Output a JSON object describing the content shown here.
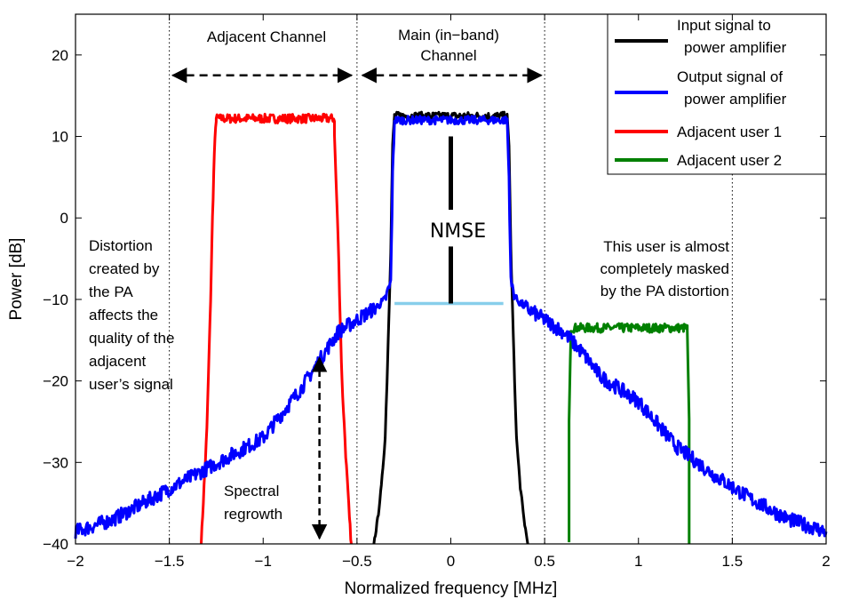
{
  "chart_data": {
    "type": "line",
    "xlabel": "Normalized frequency [MHz]",
    "ylabel": "Power [dB]",
    "xlim": [
      -2,
      2
    ],
    "ylim": [
      -40,
      25
    ],
    "x_ticks": [
      "−2",
      "−1.5",
      "−1",
      "−0.5",
      "0",
      "0.5",
      "1",
      "1.5",
      "2"
    ],
    "x_tick_values": [
      -2,
      -1.5,
      -1,
      -0.5,
      0,
      0.5,
      1,
      1.5,
      2
    ],
    "y_ticks": [
      "20",
      "10",
      "0",
      "−10",
      "−20",
      "−30",
      "−40"
    ],
    "y_tick_values": [
      20,
      10,
      0,
      -10,
      -20,
      -30,
      -40
    ],
    "grid": false,
    "vertical_dotted_lines_at": [
      -1.5,
      -0.5,
      0.5,
      1.5
    ],
    "legend_position": "top-right",
    "series": [
      {
        "name": "Input signal to power amplifier",
        "color": "#000000",
        "x": [
          -0.41,
          -0.39,
          -0.37,
          -0.35,
          -0.34,
          -0.33,
          -0.32,
          -0.315,
          -0.31,
          -0.3,
          -0.3,
          0.3,
          0.3,
          0.31,
          0.315,
          0.32,
          0.33,
          0.34,
          0.35,
          0.37,
          0.39,
          0.41
        ],
        "y": [
          -40,
          -37,
          -33,
          -27,
          -20,
          -12,
          -4,
          3,
          9,
          12.5,
          12.5,
          12.5,
          12.5,
          9,
          3,
          -4,
          -12,
          -20,
          -27,
          -33,
          -37,
          -40
        ]
      },
      {
        "name": "Output signal of power amplifier",
        "color": "#0000ff",
        "x": [
          -2,
          -1.8,
          -1.6,
          -1.4,
          -1.2,
          -1.0,
          -0.8,
          -0.7,
          -0.6,
          -0.5,
          -0.4,
          -0.35,
          -0.32,
          -0.31,
          -0.3,
          0.3,
          0.31,
          0.32,
          0.35,
          0.4,
          0.5,
          0.6,
          0.7,
          0.8,
          1.0,
          1.2,
          1.4,
          1.6,
          1.8,
          2.0
        ],
        "y": [
          -38.5,
          -37,
          -34.5,
          -32,
          -29.5,
          -27,
          -21,
          -17.5,
          -14,
          -12.5,
          -11,
          -10,
          -8,
          5,
          12,
          12,
          5,
          -8,
          -10,
          -11,
          -12.5,
          -14,
          -16.5,
          -19.5,
          -22.5,
          -28,
          -31.5,
          -34.5,
          -37,
          -38.5
        ]
      },
      {
        "name": "Adjacent user 1",
        "color": "#ff0000",
        "x": [
          -1.33,
          -1.3,
          -1.28,
          -1.27,
          -1.26,
          -1.25,
          -1.25,
          -0.62,
          -0.62,
          -0.6,
          -0.59,
          -0.58,
          -0.56,
          -0.54,
          -0.53
        ],
        "y": [
          -40,
          -26,
          -10,
          0,
          8,
          12.2,
          12.2,
          12.2,
          10,
          -3,
          -12,
          -20,
          -29,
          -37,
          -40
        ]
      },
      {
        "name": "Adjacent user 2",
        "color": "#008000",
        "x": [
          0.63,
          0.63,
          0.64,
          0.64,
          1.26,
          1.26,
          1.27,
          1.27
        ],
        "y": [
          -40,
          -25,
          -14,
          -13.5,
          -13.5,
          -14,
          -25,
          -40
        ]
      }
    ],
    "nmse_reference_line": {
      "x": [
        -0.3,
        0.28
      ],
      "y": [
        -10.5,
        -10.5
      ],
      "color": "#87ceeb"
    },
    "nmse_marker": {
      "x": 0,
      "y_top": 10,
      "y_bottom": -10.5
    },
    "annotations": {
      "adjacent_channel": "Adjacent Channel",
      "main_channel_line1": "Main (in−band)",
      "main_channel_line2": "Channel",
      "nmse": "NMSE",
      "distortion_lines": [
        "Distortion",
        "created by",
        "the PA",
        "affects the",
        "quality of the",
        "adjacent",
        "user’s signal"
      ],
      "masked_lines": [
        "This user is almost",
        "completely masked",
        "by the PA distortion"
      ],
      "spectral_regrowth_lines": [
        "Spectral",
        "regrowth"
      ]
    },
    "legend_labels": [
      [
        "Input signal to",
        "power amplifier"
      ],
      [
        "Output signal of",
        "power amplifier"
      ],
      [
        "Adjacent user 1"
      ],
      [
        "Adjacent user 2"
      ]
    ]
  }
}
